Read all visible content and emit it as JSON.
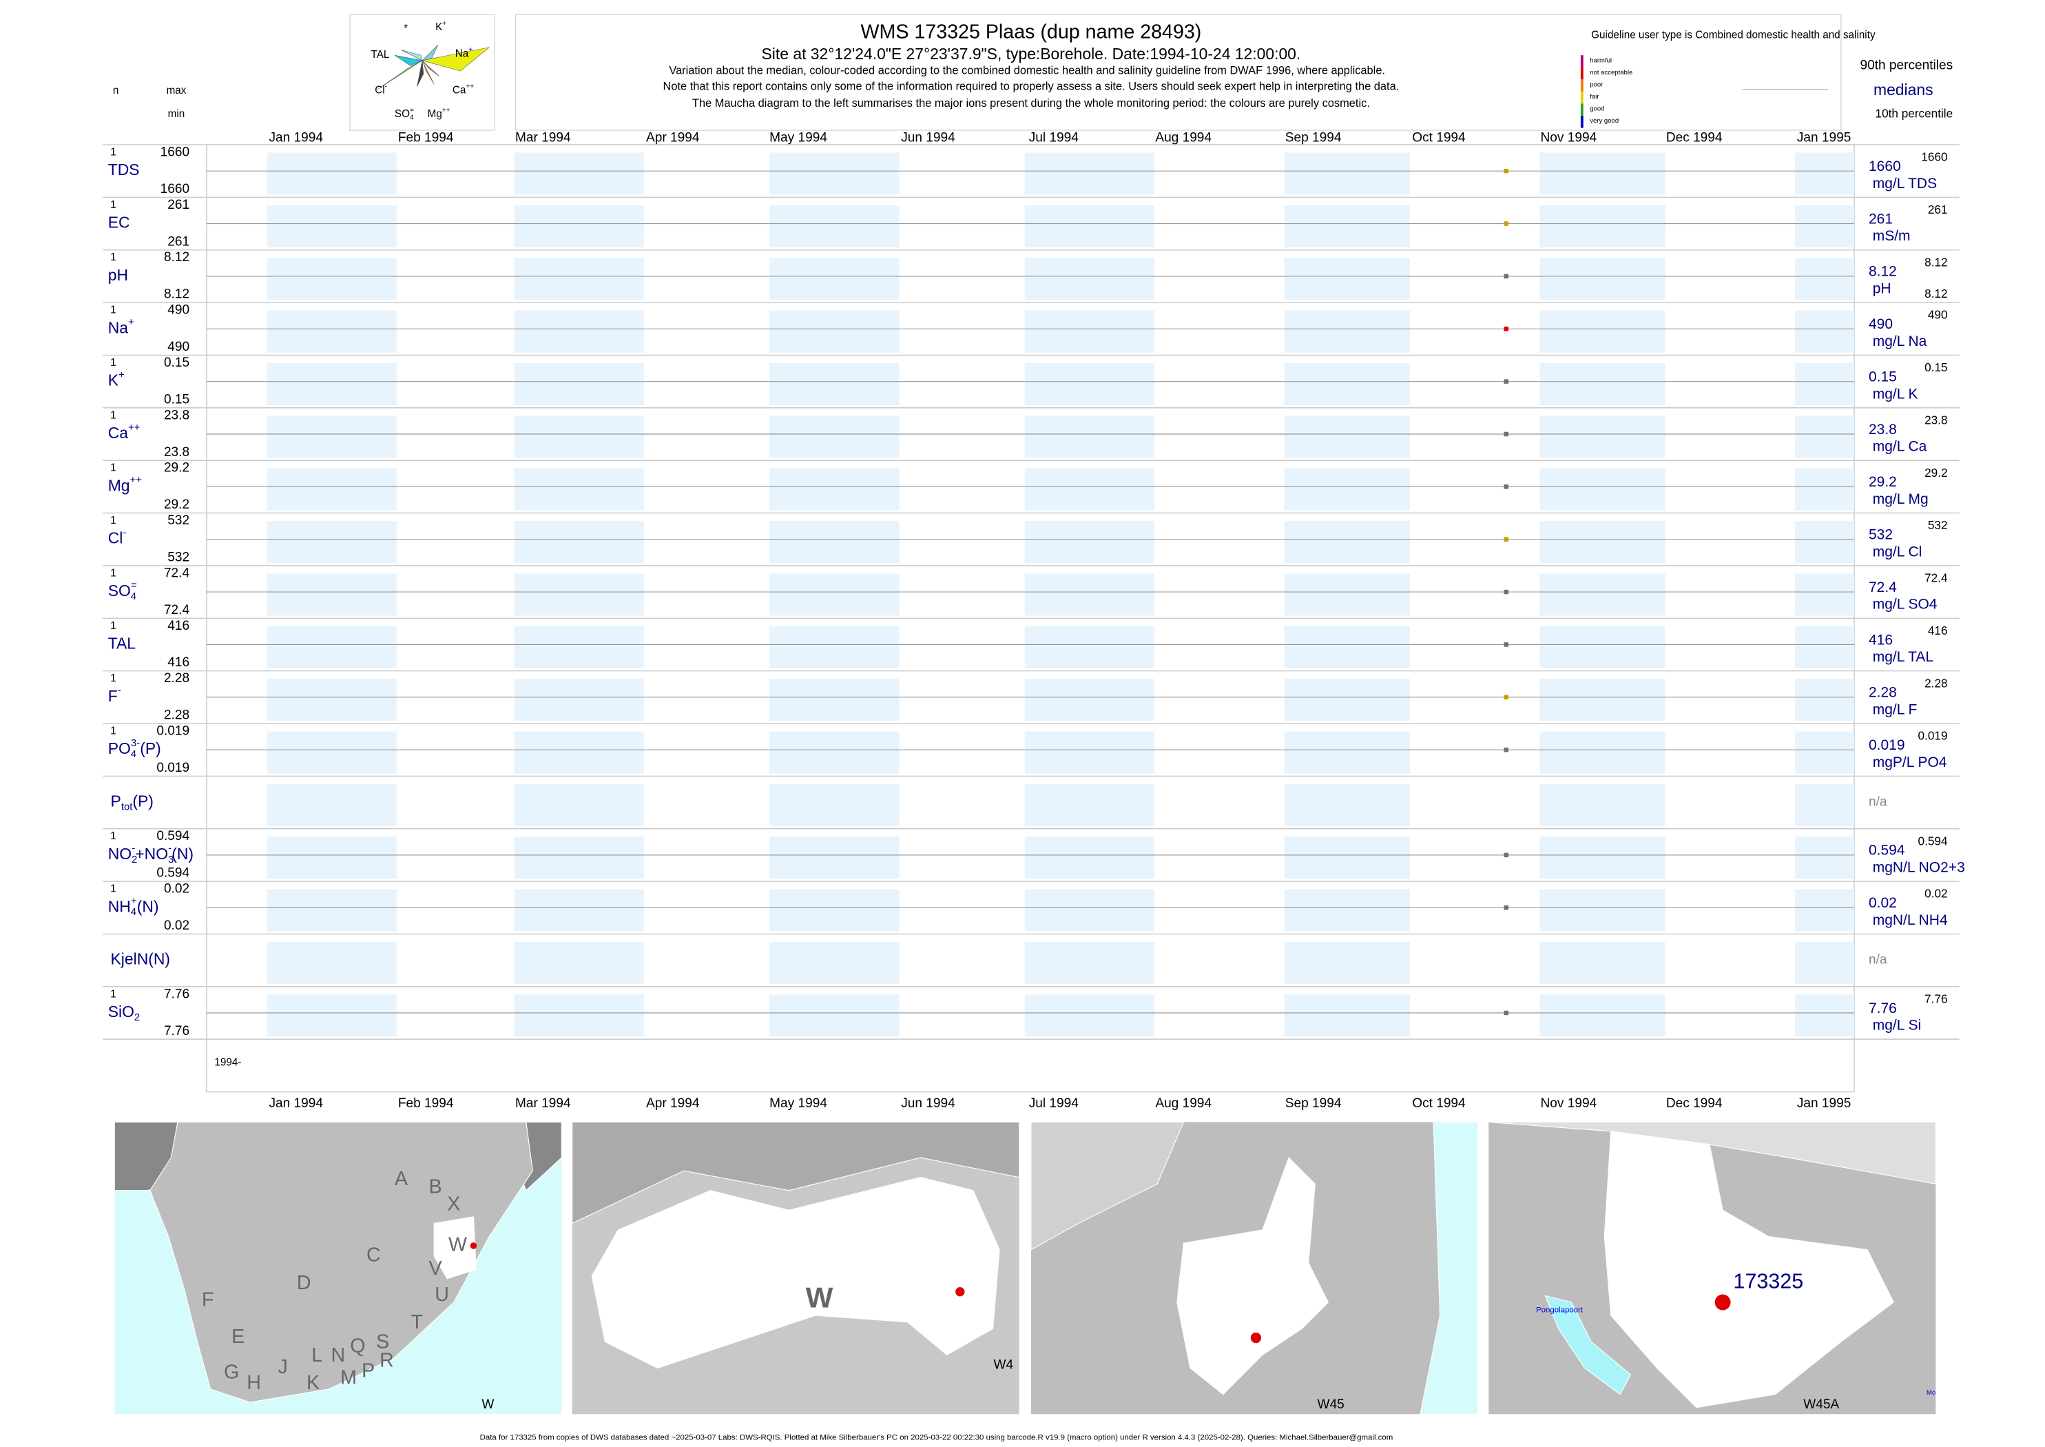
{
  "header": {
    "title": "WMS 173325  Plaas (dup name 28493)",
    "site": "Site at 32°12'24.0\"E 27°23'37.9\"S, type:Borehole. Date:",
    "date": "1994-10-24",
    "time": " 12:00:00.",
    "notes": [
      "Variation about the median,  colour-coded according to the combined domestic health and salinity guideline from DWAF 1996, where applicable.",
      "Note that this report contains only some of the information required to properly assess a site. Users should seek expert help in interpreting the data.",
      "The Maucha diagram to the left summarises the major ions present during the whole monitoring period: the colours are purely cosmetic."
    ]
  },
  "maucha": {
    "labels": [
      [
        {
          "text": "*"
        }
      ],
      [
        {
          "text": "K"
        },
        {
          "text": "+",
          "pos": "sup"
        }
      ],
      [
        {
          "text": "TAL"
        }
      ],
      [
        {
          "text": "Na"
        },
        {
          "text": "+",
          "pos": "sup"
        }
      ],
      [
        {
          "text": "Cl"
        },
        {
          "text": "-",
          "pos": "sup"
        }
      ],
      [
        {
          "text": "Ca"
        },
        {
          "text": "++",
          "pos": "sup"
        }
      ],
      [
        {
          "text": "SO"
        },
        {
          "text": "4",
          "pos": "sub"
        },
        {
          "text": "=",
          "pos": "sup"
        }
      ],
      [
        {
          "text": "Mg"
        },
        {
          "text": "++",
          "pos": "sup"
        }
      ]
    ]
  },
  "legend": {
    "guideline": "Guideline user type is Combined domestic health and salinity",
    "classes": [
      {
        "label": "harmful",
        "color": "#b0006e"
      },
      {
        "label": "not acceptable",
        "color": "#e00000"
      },
      {
        "label": "poor",
        "color": "#f08000"
      },
      {
        "label": "fair",
        "color": "#e8d000"
      },
      {
        "label": "good",
        "color": "#30a030"
      },
      {
        "label": "very good",
        "color": "#0000c0"
      }
    ],
    "p90": "90th percentiles",
    "median": "medians",
    "p10": "10th percentile"
  },
  "columns": {
    "n": "n",
    "max": "max",
    "min": "min"
  },
  "months": [
    "Jan 1994",
    "Feb 1994",
    "Mar 1994",
    "Apr 1994",
    "May 1994",
    "Jun 1994",
    "Jul 1994",
    "Aug 1994",
    "Sep 1994",
    "Oct 1994",
    "Nov 1994",
    "Dec 1994",
    "Jan 1995"
  ],
  "year_label": "1994-",
  "rows": [
    {
      "name": [
        {
          "text": "TDS"
        }
      ],
      "n": 1,
      "max": 1660,
      "min": 1660,
      "median": 1660,
      "unit": "mg/L TDS",
      "p90": 1660,
      "color": "#c8a000"
    },
    {
      "name": [
        {
          "text": "EC"
        }
      ],
      "n": 1,
      "max": 261,
      "min": 261,
      "median": 261,
      "unit": "mS/m",
      "p90": 261,
      "color": "#c8a000"
    },
    {
      "name": [
        {
          "text": "pH"
        }
      ],
      "n": 1,
      "max": 8.12,
      "min": 8.12,
      "median": 8.12,
      "unit": "pH",
      "p90": 8.12,
      "p10": 8.12,
      "color": "#707070"
    },
    {
      "name": [
        {
          "text": "Na"
        },
        {
          "text": "+",
          "pos": "sup"
        }
      ],
      "n": 1,
      "max": 490,
      "min": 490,
      "median": 490,
      "unit": "mg/L Na",
      "p90": 490,
      "color": "#e00000"
    },
    {
      "name": [
        {
          "text": "K"
        },
        {
          "text": "+",
          "pos": "sup"
        }
      ],
      "n": 1,
      "max": 0.15,
      "min": 0.15,
      "median": 0.15,
      "unit": "mg/L K",
      "p90": 0.15,
      "color": "#707070"
    },
    {
      "name": [
        {
          "text": "Ca"
        },
        {
          "text": "++",
          "pos": "sup"
        }
      ],
      "n": 1,
      "max": 23.8,
      "min": 23.8,
      "median": 23.8,
      "unit": "mg/L Ca",
      "p90": 23.8,
      "color": "#707070"
    },
    {
      "name": [
        {
          "text": "Mg"
        },
        {
          "text": "++",
          "pos": "sup"
        }
      ],
      "n": 1,
      "max": 29.2,
      "min": 29.2,
      "median": 29.2,
      "unit": "mg/L Mg",
      "p90": 29.2,
      "color": "#707070"
    },
    {
      "name": [
        {
          "text": "Cl"
        },
        {
          "text": "-",
          "pos": "sup"
        }
      ],
      "n": 1,
      "max": 532,
      "min": 532,
      "median": 532,
      "unit": "mg/L Cl",
      "p90": 532,
      "color": "#c8a000"
    },
    {
      "name": [
        {
          "text": "SO"
        },
        {
          "text": "4",
          "pos": "sub"
        },
        {
          "text": "=",
          "pos": "sup"
        }
      ],
      "n": 1,
      "max": 72.4,
      "min": 72.4,
      "median": 72.4,
      "unit": "mg/L SO4",
      "p90": 72.4,
      "color": "#707070"
    },
    {
      "name": [
        {
          "text": "TAL"
        }
      ],
      "n": 1,
      "max": 416,
      "min": 416,
      "median": 416,
      "unit": "mg/L TAL",
      "p90": 416,
      "color": "#707070"
    },
    {
      "name": [
        {
          "text": "F"
        },
        {
          "text": "-",
          "pos": "sup"
        }
      ],
      "n": 1,
      "max": 2.28,
      "min": 2.28,
      "median": 2.28,
      "unit": "mg/L F",
      "p90": 2.28,
      "color": "#c8a000"
    },
    {
      "name": [
        {
          "text": "PO"
        },
        {
          "text": "4",
          "pos": "sub"
        },
        {
          "text": "3-",
          "pos": "sup"
        },
        {
          "text": "(P)"
        }
      ],
      "n": 1,
      "max": 0.019,
      "min": 0.019,
      "median": 0.019,
      "unit": "mgP/L PO4",
      "p90": 0.019,
      "color": "#707070"
    },
    {
      "name": [
        {
          "text": "P"
        },
        {
          "text": "tot",
          "pos": "sub"
        },
        {
          "text": "(P)"
        }
      ],
      "na": "n/a"
    },
    {
      "name": [
        {
          "text": "NO"
        },
        {
          "text": "2",
          "pos": "sub"
        },
        {
          "text": "-",
          "pos": "sup"
        },
        {
          "text": "+NO"
        },
        {
          "text": "3",
          "pos": "sub"
        },
        {
          "text": "-",
          "pos": "sup"
        },
        {
          "text": "(N)"
        }
      ],
      "n": 1,
      "max": 0.594,
      "min": 0.594,
      "median": 0.594,
      "unit": "mgN/L NO2+3",
      "p90": 0.594,
      "color": "#707070"
    },
    {
      "name": [
        {
          "text": "NH"
        },
        {
          "text": "4",
          "pos": "sub"
        },
        {
          "text": "+",
          "pos": "sup"
        },
        {
          "text": "(N)"
        }
      ],
      "n": 1,
      "max": 0.02,
      "min": 0.02,
      "median": 0.02,
      "unit": "mgN/L NH4",
      "p90": 0.02,
      "color": "#707070"
    },
    {
      "name": [
        {
          "text": "KjelN(N)"
        }
      ],
      "na": "n/a"
    },
    {
      "name": [
        {
          "text": "SiO"
        },
        {
          "text": "2",
          "pos": "sub"
        }
      ],
      "n": 1,
      "max": 7.76,
      "min": 7.76,
      "median": 7.76,
      "unit": "mg/L Si",
      "p90": 7.76,
      "color": "#707070"
    }
  ],
  "maps": [
    {
      "labels": [
        "A",
        "B",
        "X",
        "W",
        "C",
        "V",
        "D",
        "U",
        "F",
        "T",
        "E",
        "S",
        "L",
        "N",
        "Q",
        "R",
        "G",
        "H",
        "J",
        "K",
        "M",
        "P"
      ],
      "caption": "W"
    },
    {
      "labels": [
        "W"
      ],
      "caption": "W4"
    },
    {
      "labels": [],
      "caption": "W45"
    },
    {
      "labels": [
        "173325",
        "Pongolapoort",
        "Mo"
      ],
      "caption": "W45A"
    }
  ],
  "footer": "Data for 173325 from copies of DWS databases dated ~2025-03-07 Labs: DWS-RQIS. Plotted at Mike Silberbauer's PC on 2025-03-22 00:22:30 using barcode.R v19.9 (macro option) under R version 4.4.3 (2025-02-28). Queries: Michael.Silberbauer@gmail.com"
}
